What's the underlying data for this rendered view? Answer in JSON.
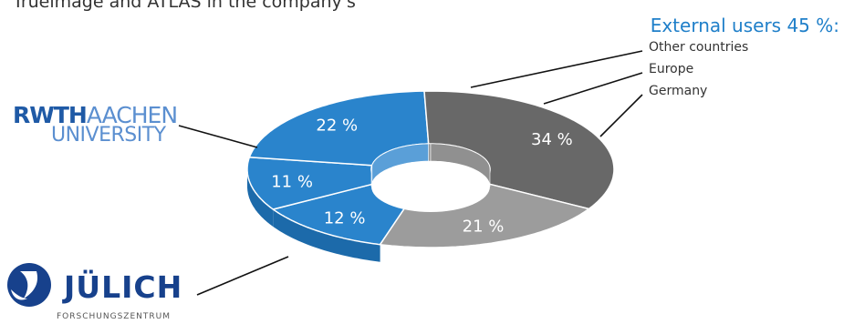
{
  "intro_text": "Trueimage and ATLAS in the company's",
  "external_title": "External users 45 %:",
  "logos": {
    "rwth_line1_a": "RWTH",
    "rwth_line1_b": "AACHEN",
    "rwth_line2": "UNIVERSITY",
    "julich_name": "JÜLICH",
    "julich_sub": "FORSCHUNGSZENTRUM"
  },
  "colors": {
    "external": "#2a84cc",
    "external_dark": "#1c6aaa",
    "external_inner": "#5a9fd8",
    "rwth": "#9c9c9c",
    "rwth_dark": "#7d7d7d",
    "rwth_inner": "#c9c9c9",
    "julich": "#686868",
    "julich_dark": "#4e4e4e",
    "julich_inner": "#909090"
  },
  "chart_data": {
    "type": "pie",
    "style": "3d-donut",
    "title": "",
    "slices": [
      {
        "label": "Other countries",
        "value": 12,
        "display": "12 %",
        "group": "external"
      },
      {
        "label": "Europe",
        "value": 11,
        "display": "11 %",
        "group": "external"
      },
      {
        "label": "Germany",
        "value": 22,
        "display": "22 %",
        "group": "external"
      },
      {
        "label": "JÜLICH",
        "value": 34,
        "display": "34 %",
        "group": "julich"
      },
      {
        "label": "RWTH AACHEN UNIVERSITY",
        "value": 21,
        "display": "21 %",
        "group": "rwth"
      }
    ],
    "legend": [
      "Other countries",
      "Europe",
      "Germany"
    ],
    "legend_position": "top-right"
  }
}
